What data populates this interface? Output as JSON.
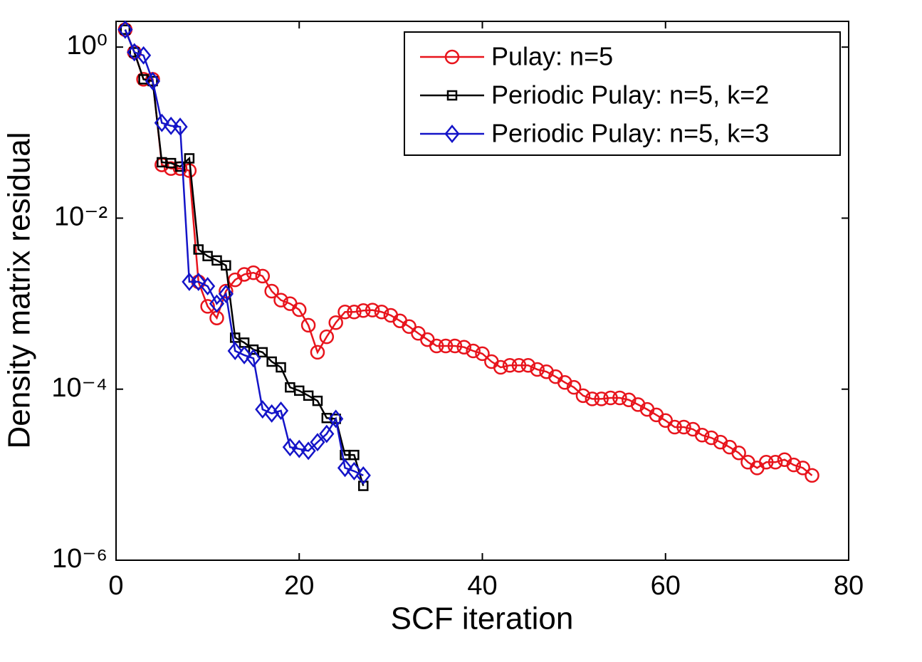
{
  "chart_data": {
    "type": "line",
    "xlabel": "SCF iteration",
    "ylabel": "Density matrix residual",
    "xlim": [
      0,
      80
    ],
    "xticks": [
      0,
      20,
      40,
      60,
      80
    ],
    "ylim": [
      1e-06,
      2
    ],
    "yscale": "log",
    "yticks": [
      {
        "value": 1,
        "label": "10⁰"
      },
      {
        "value": 0.01,
        "label": "10⁻²"
      },
      {
        "value": 0.0001,
        "label": "10⁻⁴"
      },
      {
        "value": 1e-06,
        "label": "10⁻⁶"
      }
    ],
    "legend": "upper right",
    "series": [
      {
        "name": "Pulay: n=5",
        "color": "#e8141c",
        "marker": "circle",
        "x": [
          1,
          2,
          3,
          4,
          5,
          6,
          7,
          8,
          9,
          10,
          11,
          12,
          13,
          14,
          15,
          16,
          17,
          18,
          19,
          20,
          21,
          22,
          23,
          24,
          25,
          26,
          27,
          28,
          29,
          30,
          31,
          32,
          33,
          34,
          35,
          36,
          37,
          38,
          39,
          40,
          41,
          42,
          43,
          44,
          45,
          46,
          47,
          48,
          49,
          50,
          51,
          52,
          53,
          54,
          55,
          56,
          57,
          58,
          59,
          60,
          61,
          62,
          63,
          64,
          65,
          66,
          67,
          68,
          69,
          70,
          71,
          72,
          73,
          74,
          75,
          76
        ],
        "values": [
          1.6,
          0.87,
          0.42,
          0.42,
          0.042,
          0.038,
          0.038,
          0.036,
          0.0018,
          0.00093,
          0.00068,
          0.0014,
          0.0019,
          0.0022,
          0.0023,
          0.0021,
          0.0014,
          0.0011,
          0.001,
          0.00085,
          0.00056,
          0.00027,
          0.00041,
          0.0006,
          0.0008,
          0.0008,
          0.00083,
          0.00084,
          0.0008,
          0.00073,
          0.00063,
          0.00054,
          0.00045,
          0.00038,
          0.00032,
          0.00032,
          0.00032,
          0.00031,
          0.00028,
          0.00026,
          0.00021,
          0.00018,
          0.00019,
          0.00019,
          0.00019,
          0.00017,
          0.00016,
          0.00014,
          0.00012,
          0.000105,
          8.4e-05,
          7.7e-05,
          7.7e-05,
          7.9e-05,
          7.9e-05,
          7.5e-05,
          6.6e-05,
          5.8e-05,
          5e-05,
          4.3e-05,
          3.6e-05,
          3.6e-05,
          3.4e-05,
          2.9e-05,
          2.7e-05,
          2.4e-05,
          2.1e-05,
          1.8e-05,
          1.4e-05,
          1.2e-05,
          1.4e-05,
          1.4e-05,
          1.5e-05,
          1.3e-05,
          1.2e-05,
          9.8e-06
        ]
      },
      {
        "name": "Periodic Pulay: n=5, k=2",
        "color": "#000000",
        "marker": "square",
        "x": [
          1,
          2,
          3,
          4,
          5,
          6,
          7,
          8,
          9,
          10,
          11,
          12,
          13,
          14,
          15,
          16,
          17,
          18,
          19,
          20,
          21,
          22,
          23,
          24,
          25,
          26,
          27
        ],
        "values": [
          1.6,
          0.87,
          0.42,
          0.4,
          0.045,
          0.044,
          0.04,
          0.05,
          0.0043,
          0.0036,
          0.0032,
          0.0028,
          0.0004,
          0.00035,
          0.00029,
          0.00027,
          0.00021,
          0.00018,
          0.000105,
          9.6e-05,
          8.4e-05,
          7.3e-05,
          4.6e-05,
          4.5e-05,
          1.7e-05,
          1.7e-05,
          7.4e-06
        ]
      },
      {
        "name": "Periodic Pulay: n=5, k=3",
        "color": "#1414c8",
        "marker": "diamond",
        "x": [
          1,
          2,
          3,
          4,
          5,
          6,
          7,
          8,
          9,
          10,
          11,
          12,
          13,
          14,
          15,
          16,
          17,
          18,
          19,
          20,
          21,
          22,
          23,
          24,
          25,
          26,
          27
        ],
        "values": [
          1.6,
          0.87,
          0.8,
          0.4,
          0.13,
          0.12,
          0.117,
          0.0018,
          0.0018,
          0.0016,
          0.001,
          0.0013,
          0.00028,
          0.00025,
          0.00023,
          5.8e-05,
          5.2e-05,
          5.6e-05,
          2.1e-05,
          2e-05,
          1.9e-05,
          2.4e-05,
          3e-05,
          4.5e-05,
          1.2e-05,
          1.1e-05,
          9.8e-06
        ]
      }
    ]
  }
}
